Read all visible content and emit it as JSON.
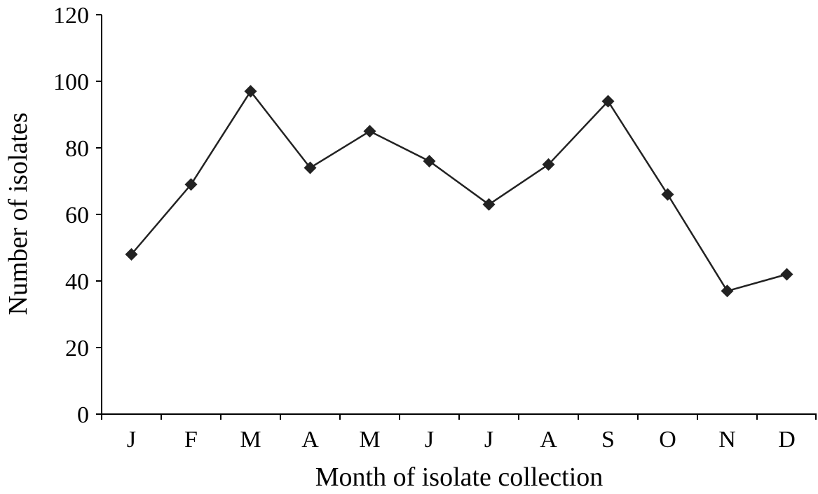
{
  "chart_data": {
    "type": "line",
    "title": "",
    "xlabel": "Month of isolate collection",
    "ylabel": "Number of isolates",
    "categories": [
      "J",
      "F",
      "M",
      "A",
      "M",
      "J",
      "J",
      "A",
      "S",
      "O",
      "N",
      "D"
    ],
    "values": [
      48,
      69,
      97,
      74,
      85,
      76,
      63,
      75,
      94,
      66,
      37,
      42
    ],
    "ylim": [
      0,
      120
    ],
    "yticks": [
      0,
      20,
      40,
      60,
      80,
      100,
      120
    ],
    "ytick_labels": [
      "0",
      "20",
      "40",
      "60",
      "80",
      "100",
      "120"
    ],
    "grid": false,
    "legend": "none",
    "marker": "diamond",
    "line_color": "#222222"
  }
}
